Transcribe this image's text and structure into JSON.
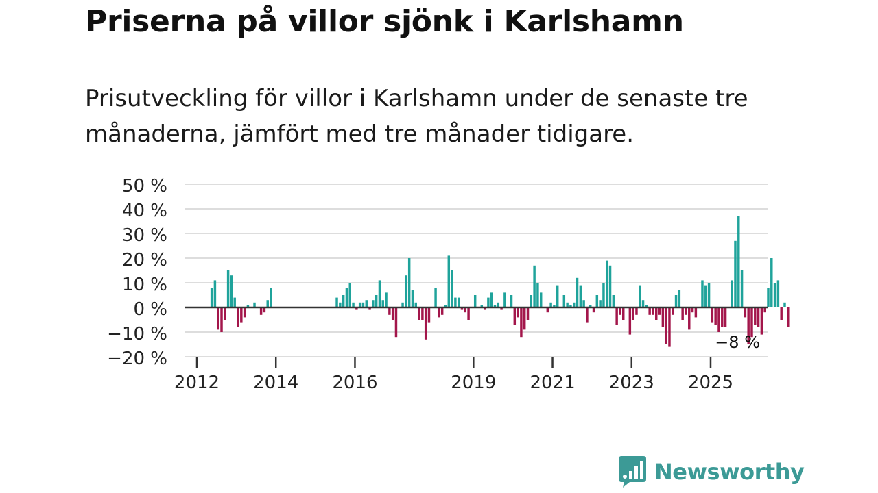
{
  "title": "Priserna på villor sjönk i Karlshamn",
  "subtitle": "Prisutveckling för villor i Karlshamn under de senaste tre månaderna, jämfört med tre månader tidigare.",
  "brand": {
    "name": "Newsworthy"
  },
  "colors": {
    "positive": "#1fa39b",
    "negative": "#a3164b",
    "grid": "#dddddd",
    "zero": "#333333",
    "text": "#222222"
  },
  "chart_data": {
    "type": "bar",
    "title": "Priserna på villor sjönk i Karlshamn",
    "xlabel": "",
    "ylabel": "",
    "ylim": [
      -20,
      50
    ],
    "yticks": [
      50,
      40,
      30,
      20,
      10,
      0,
      -10,
      -20
    ],
    "ytick_labels": [
      "50 %",
      "40 %",
      "30 %",
      "20 %",
      "10 %",
      "0 %",
      "−10 %",
      "−20 %"
    ],
    "xticks": [
      2012,
      2014,
      2016,
      2019,
      2021,
      2023,
      2025
    ],
    "x_start": 2012.0,
    "x_step": 0.08333,
    "values": [
      null,
      null,
      null,
      null,
      8,
      11,
      -9,
      -10,
      -5,
      15,
      13,
      4,
      -8,
      -6,
      -4,
      1,
      null,
      2,
      null,
      -3,
      -2,
      3,
      8,
      null,
      null,
      null,
      null,
      null,
      null,
      null,
      null,
      null,
      null,
      null,
      null,
      null,
      null,
      null,
      null,
      null,
      null,
      null,
      4,
      2,
      5,
      8,
      10,
      2,
      -1,
      2,
      2,
      3,
      -1,
      3,
      5,
      11,
      3,
      6,
      -3,
      -5,
      -12,
      null,
      2,
      13,
      20,
      7,
      2,
      -5,
      -5,
      -13,
      -6,
      null,
      8,
      -4,
      -3,
      1,
      21,
      15,
      4,
      4,
      -1,
      -2,
      -5,
      null,
      5,
      null,
      1,
      -1,
      4,
      6,
      1,
      2,
      -1,
      6,
      null,
      5,
      -7,
      -4,
      -12,
      -9,
      -5,
      5,
      17,
      10,
      6,
      null,
      -2,
      2,
      1,
      9,
      null,
      5,
      2,
      1,
      2,
      12,
      9,
      3,
      -6,
      1,
      -2,
      5,
      3,
      10,
      19,
      17,
      5,
      -7,
      -3,
      -5,
      null,
      -11,
      -5,
      -3,
      9,
      3,
      1,
      -3,
      -3,
      -5,
      -3,
      -8,
      -15,
      -16,
      -3,
      5,
      7,
      -5,
      -3,
      -9,
      -2,
      -4,
      null,
      11,
      9,
      10,
      -6,
      -7,
      -10,
      -8,
      -8,
      null,
      11,
      27,
      37,
      15,
      -4,
      -15,
      -12,
      -7,
      -8,
      -11,
      -2,
      8,
      20,
      10,
      11,
      -5,
      2,
      -8
    ],
    "last_label": "−8 %",
    "x_labels": [
      "2012",
      "2014",
      "2016",
      "2019",
      "2021",
      "2023",
      "2025"
    ]
  }
}
